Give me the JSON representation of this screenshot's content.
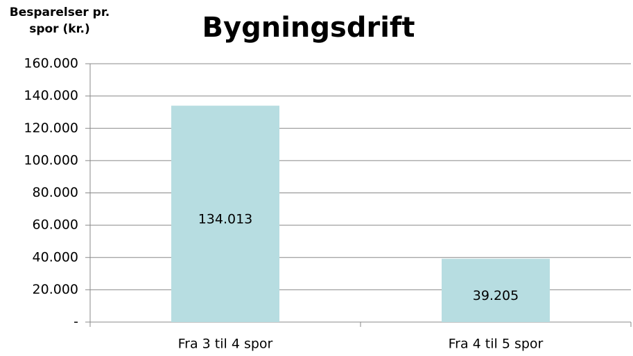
{
  "chart_data": {
    "type": "bar",
    "title": "Bygningsdrift",
    "ylabel": "Besparelser pr. spor (kr.)",
    "categories": [
      "Fra 3 til 4 spor",
      "Fra 4 til 5 spor"
    ],
    "values": [
      134013,
      39205
    ],
    "value_labels": [
      "134.013",
      "39.205"
    ],
    "color": "#b7dde1",
    "ylim": [
      0,
      160000
    ],
    "yticks": [
      {
        "value": 0,
        "label": "-"
      },
      {
        "value": 20000,
        "label": "20.000"
      },
      {
        "value": 40000,
        "label": "40.000"
      },
      {
        "value": 60000,
        "label": "60.000"
      },
      {
        "value": 80000,
        "label": "80.000"
      },
      {
        "value": 100000,
        "label": "100.000"
      },
      {
        "value": 120000,
        "label": "120.000"
      },
      {
        "value": 140000,
        "label": "140.000"
      },
      {
        "value": 160000,
        "label": "160.000"
      }
    ],
    "grid": true
  }
}
